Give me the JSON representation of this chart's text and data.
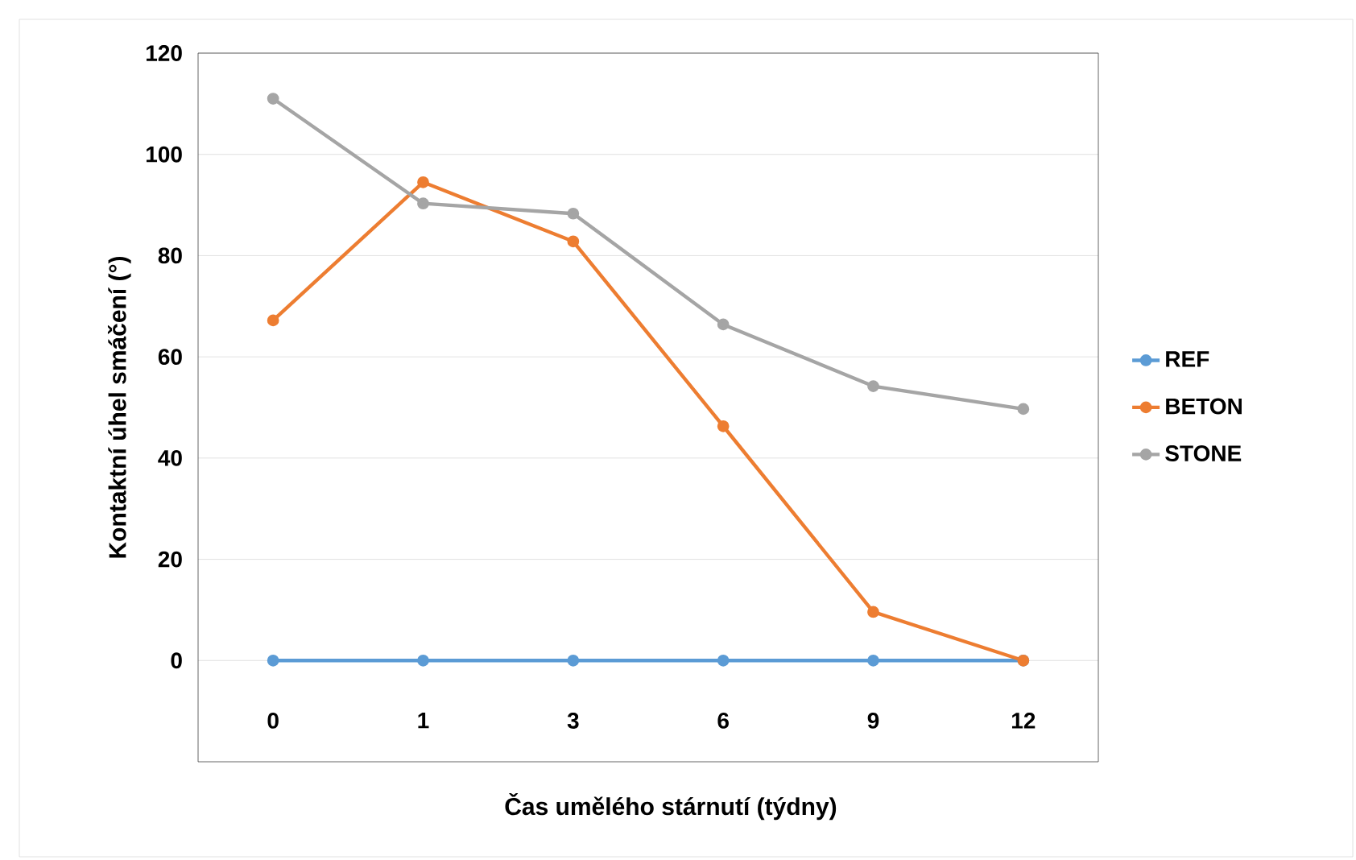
{
  "chart_data": {
    "type": "line",
    "xlabel": "Čas umělého stárnutí (týdny)",
    "ylabel": "Kontaktní úhel smáčení (°)",
    "categories": [
      "0",
      "1",
      "3",
      "6",
      "9",
      "12"
    ],
    "series": [
      {
        "name": "REF",
        "color": "#5b9bd5",
        "values": [
          0,
          0,
          0,
          0,
          0,
          0
        ]
      },
      {
        "name": "BETON",
        "color": "#ed7d31",
        "values": [
          67.2,
          94.5,
          82.8,
          46.3,
          9.6,
          0
        ]
      },
      {
        "name": "STONE",
        "color": "#a5a5a5",
        "values": [
          111,
          90.3,
          88.3,
          66.4,
          54.2,
          49.7
        ]
      }
    ],
    "ylim": [
      -20,
      120
    ],
    "yticks": [
      0,
      20,
      40,
      60,
      80,
      100,
      120
    ],
    "grid": "y",
    "legend": "right",
    "marker": "circle",
    "line_style": "solid"
  }
}
